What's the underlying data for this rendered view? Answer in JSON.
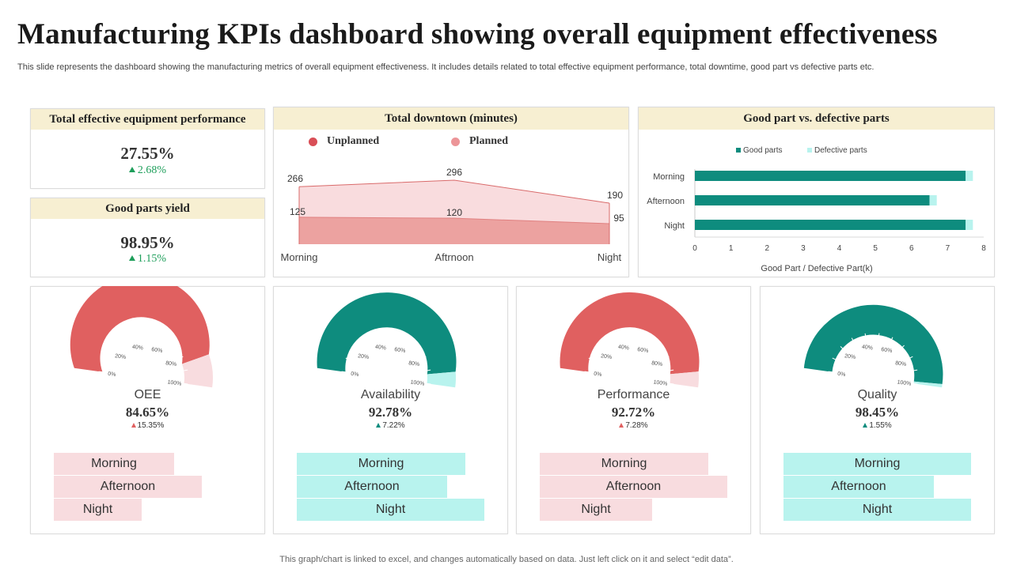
{
  "title": "Manufacturing KPIs dashboard showing overall equipment effectiveness",
  "subtitle": "This slide represents the dashboard showing the manufacturing metrics of overall equipment effectiveness. It includes details related to total effective  equipment performance, total downtime, good part vs defective parts etc.",
  "footer": "This graph/chart is linked to excel,  and changes automatically based on data. Just left click on it and select “edit data”.",
  "colors": {
    "header_bg": "#f7efd2",
    "red": "#e06060",
    "pink": "#f8dcdf",
    "teal": "#0e8c7e",
    "aqua": "#b8f3ee",
    "green_text": "#1d9e5a"
  },
  "kpis": [
    {
      "title": "Total effective equipment  performance",
      "value": "27.55%",
      "change": "2.68%",
      "direction": "up"
    },
    {
      "title": "Good parts  yield",
      "value": "98.95%",
      "change": "1.15%",
      "direction": "up"
    }
  ],
  "downtime": {
    "title": "Total downtown  (minutes)",
    "legend": [
      "Unplanned",
      "Planned"
    ]
  },
  "parts": {
    "title": "Good part  vs. defective parts"
  },
  "gauges": [
    {
      "name": "OEE",
      "value": "84.65%",
      "change": "15.35%",
      "fill_fraction": 0.8465,
      "scheme": "red",
      "shifts": [
        {
          "label": "Morning",
          "level": 0.64
        },
        {
          "label": "Afternoon",
          "level": 0.79
        },
        {
          "label": "Night",
          "level": 0.47
        }
      ]
    },
    {
      "name": "Availability",
      "value": "92.78%",
      "change": "7.22%",
      "fill_fraction": 0.9278,
      "scheme": "teal",
      "shifts": [
        {
          "label": "Morning",
          "level": 0.9
        },
        {
          "label": "Afternoon",
          "level": 0.8
        },
        {
          "label": "Night",
          "level": 1.0
        }
      ]
    },
    {
      "name": "Performance",
      "value": "92.72%",
      "change": "7.28%",
      "fill_fraction": 0.9272,
      "scheme": "red",
      "shifts": [
        {
          "label": "Morning",
          "level": 0.9
        },
        {
          "label": "Afternoon",
          "level": 1.0
        },
        {
          "label": "Night",
          "level": 0.6
        }
      ]
    },
    {
      "name": "Quality",
      "value": "98.45%",
      "change": "1.55%",
      "fill_fraction": 0.9845,
      "scheme": "teal",
      "shifts": [
        {
          "label": "Morning",
          "level": 1.0
        },
        {
          "label": "Afternoon",
          "level": 0.8
        },
        {
          "label": "Night",
          "level": 1.0
        }
      ]
    }
  ],
  "gauge_ticks": [
    "0%",
    "20%",
    "40%",
    "60%",
    "80%",
    "100%"
  ],
  "chart_data": [
    {
      "type": "area",
      "title": "Total downtown  (minutes)",
      "categories": [
        "Morning",
        "Aftrnoon",
        "Night"
      ],
      "series": [
        {
          "name": "Unplanned",
          "values": [
            125,
            120,
            95
          ],
          "color": "#e06060"
        },
        {
          "name": "Planned",
          "values": [
            266,
            296,
            190
          ],
          "color": "#f8dcdf"
        }
      ],
      "legend": "top",
      "grid": false
    },
    {
      "type": "bar",
      "orientation": "horizontal",
      "stacked": true,
      "title": "Good part  vs. defective parts",
      "categories": [
        "Morning",
        "Afternoon",
        "Night"
      ],
      "series": [
        {
          "name": "Good parts",
          "values": [
            7.5,
            6.5,
            7.5
          ],
          "color": "#0e8c7e"
        },
        {
          "name": "Defective parts",
          "values": [
            0.2,
            0.2,
            0.2
          ],
          "color": "#b8f3ee"
        }
      ],
      "xlabel": "Good Part / Defective Part(k)",
      "xlim": [
        0,
        8
      ],
      "xticks": [
        "0",
        "1",
        "2",
        "3",
        "4",
        "5",
        "6",
        "7",
        "8"
      ],
      "legend": "top",
      "grid": false
    }
  ]
}
